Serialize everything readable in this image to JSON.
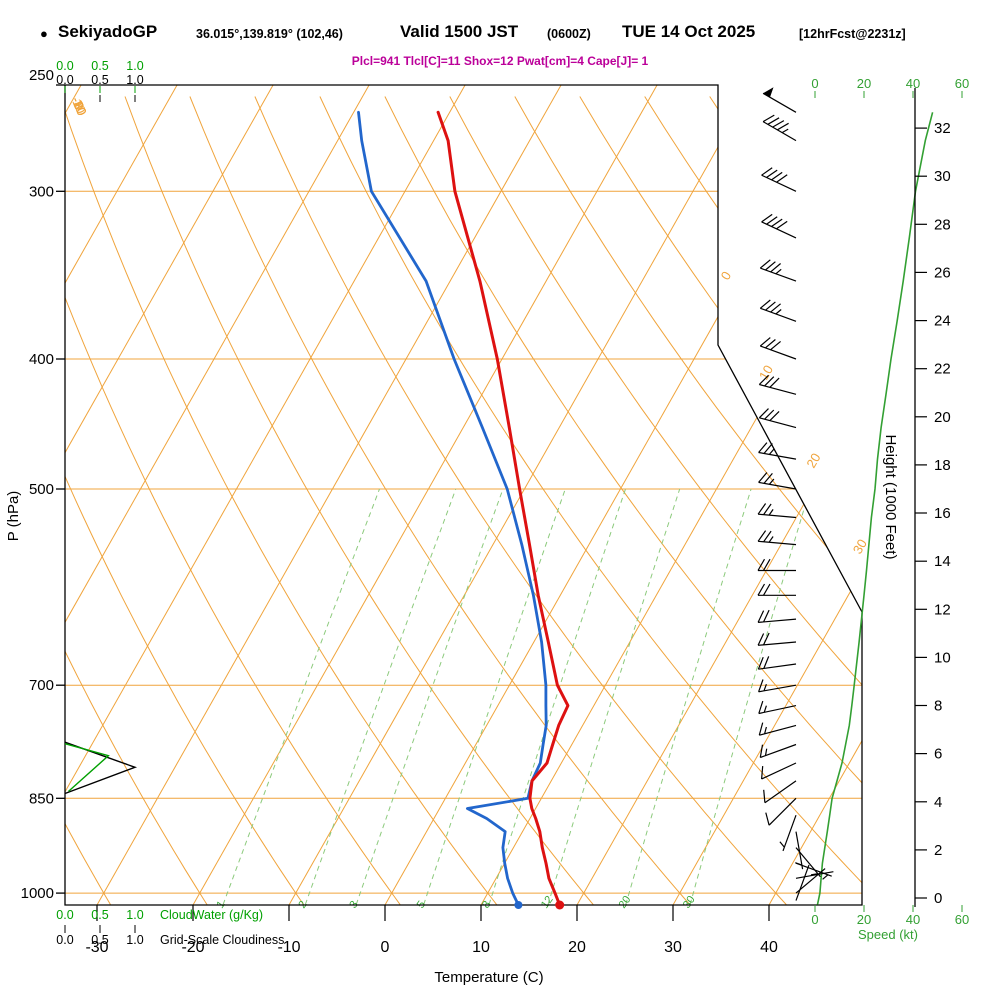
{
  "header": {
    "bullet": "●",
    "station": "SekiyadoGP",
    "coords": "36.015°,139.819° (102,46)",
    "valid": "Valid 1500 JST",
    "valid_minor": "(0600Z)",
    "date": "TUE 14 Oct 2025",
    "fcst": "[12hrFcst@2231z]",
    "indices": "Plcl=941 Tlcl[C]=11 Shox=12 Pwat[cm]=4 Cape[J]= 1"
  },
  "labels": {
    "pressure_axis": "P (hPa)",
    "temp_axis": "Temperature (C)",
    "height_axis": "Height (1000 Feet)",
    "speed_axis": "Speed (kt)",
    "cloudwater": "CloudWater (g/Kg)",
    "cloudiness": "Grid-Scale Cloudiness"
  },
  "colors": {
    "grid": "#f0a43c",
    "mixing_line": "#8cca7c",
    "mixing_label": "#3aaa3a",
    "temperature": "#dd1111",
    "dewpoint": "#2266cc",
    "speed_curve": "#33a033",
    "cloudwater": "#00a000",
    "indices": "#bb0099",
    "axis": "#000000"
  },
  "chart_data": {
    "type": "skewt_log_p_sounding",
    "pressure_axis_hpa": [
      250,
      300,
      400,
      500,
      700,
      850,
      1000
    ],
    "temp_axis_c": [
      -30,
      -20,
      -10,
      0,
      10,
      20,
      30,
      40
    ],
    "height_axis_kft": [
      0,
      2,
      4,
      6,
      8,
      10,
      12,
      14,
      16,
      18,
      20,
      22,
      24,
      26,
      28,
      30,
      32
    ],
    "speed_axis_kt": [
      0,
      20,
      40,
      60
    ],
    "cloud_axis": [
      "0.0",
      "0.5",
      "1.0"
    ],
    "mixing_ratio_g_kg": [
      1,
      2,
      3,
      5,
      8,
      12,
      20,
      30
    ],
    "dry_adiabat_labels_c": [
      10,
      0,
      -10,
      -20,
      -30
    ],
    "isotherm_labels_c": [
      0,
      10,
      20,
      30
    ],
    "sounding": {
      "pressure_hpa": [
        1021,
        1000,
        975,
        950,
        925,
        900,
        880,
        865,
        850,
        825,
        800,
        775,
        750,
        725,
        700,
        650,
        600,
        550,
        500,
        450,
        400,
        350,
        300,
        275,
        262
      ],
      "temperature_c": [
        18.2,
        17.0,
        15.5,
        14.3,
        13.0,
        11.8,
        10.6,
        9.6,
        8.8,
        8.0,
        8.5,
        8.0,
        7.5,
        7.3,
        5.0,
        1.5,
        -2.3,
        -6.2,
        -10.5,
        -15.2,
        -20.5,
        -26.9,
        -34.8,
        -38.5,
        -41.2
      ],
      "dewpoint_c": [
        13.9,
        12.6,
        11.2,
        10.0,
        8.9,
        8.2,
        5.5,
        2.9,
        8.6,
        8.0,
        7.8,
        7.0,
        6.2,
        5.0,
        3.8,
        0.8,
        -2.8,
        -7.0,
        -11.8,
        -18.0,
        -25.0,
        -32.5,
        -43.5,
        -47.5,
        -49.5
      ]
    },
    "wind_barbs": [
      [
        262,
        300,
        48
      ],
      [
        275,
        300,
        45
      ],
      [
        300,
        295,
        42
      ],
      [
        325,
        295,
        40
      ],
      [
        350,
        290,
        37
      ],
      [
        375,
        290,
        35
      ],
      [
        400,
        290,
        32
      ],
      [
        425,
        285,
        30
      ],
      [
        450,
        285,
        28
      ],
      [
        475,
        280,
        26
      ],
      [
        500,
        280,
        25
      ],
      [
        525,
        275,
        24
      ],
      [
        550,
        275,
        23
      ],
      [
        575,
        270,
        22
      ],
      [
        600,
        270,
        21
      ],
      [
        625,
        265,
        20
      ],
      [
        650,
        265,
        19
      ],
      [
        675,
        262,
        18
      ],
      [
        700,
        260,
        17
      ],
      [
        725,
        258,
        16
      ],
      [
        750,
        255,
        14
      ],
      [
        775,
        250,
        13
      ],
      [
        800,
        245,
        11
      ],
      [
        825,
        235,
        9
      ],
      [
        850,
        225,
        8
      ],
      [
        875,
        200,
        6
      ],
      [
        900,
        170,
        5
      ],
      [
        925,
        140,
        4
      ],
      [
        950,
        110,
        3
      ],
      [
        975,
        80,
        2
      ],
      [
        1000,
        50,
        2
      ],
      [
        1013,
        20,
        1
      ]
    ],
    "wind_speed_profile": {
      "p": [
        1020,
        1000,
        975,
        950,
        925,
        900,
        875,
        850,
        825,
        800,
        775,
        750,
        725,
        700,
        675,
        650,
        625,
        600,
        575,
        550,
        525,
        500,
        475,
        450,
        425,
        400,
        375,
        350,
        325,
        300,
        275,
        262
      ],
      "kt": [
        1,
        2,
        2.5,
        3,
        4,
        5,
        6,
        7,
        9,
        11,
        12.5,
        14,
        15,
        16,
        17,
        18,
        19,
        20,
        21,
        22,
        23,
        24.5,
        25.5,
        27,
        29,
        31,
        33.5,
        36,
        38.5,
        41,
        45,
        48
      ]
    },
    "grid_scale_cloudiness": {
      "p": [
        772,
        806,
        843
      ],
      "value": [
        0,
        1.0,
        0
      ]
    },
    "cloud_water": {
      "p": [
        774,
        790,
        840
      ],
      "value": [
        0,
        0.62,
        0.05
      ]
    }
  }
}
